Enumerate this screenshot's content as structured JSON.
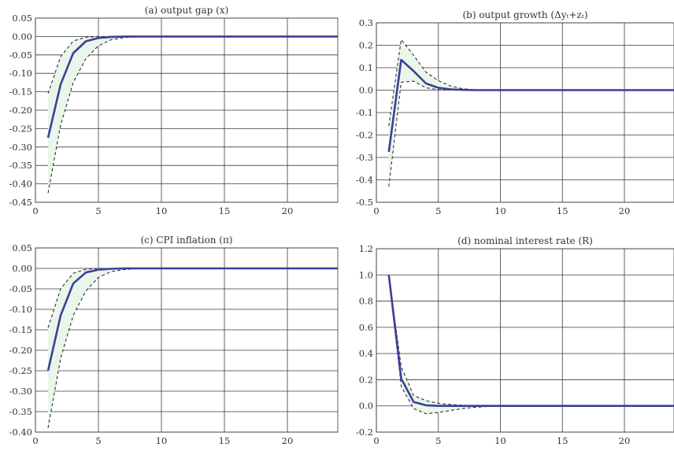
{
  "colors": {
    "median": "#3c3f9a",
    "band": "#e9f6e9",
    "grid": "#3a3a3a"
  },
  "chart_data": [
    {
      "type": "line",
      "title": "(a) output gap (x)",
      "xlim": [
        0,
        24
      ],
      "ylim": [
        -0.45,
        0.05
      ],
      "xticks": [
        0,
        5,
        10,
        15,
        20
      ],
      "yticks": [
        -0.45,
        -0.4,
        -0.35,
        -0.3,
        -0.25,
        -0.2,
        -0.15,
        -0.1,
        -0.05,
        0.0,
        0.05
      ],
      "ytick_decimals": 2,
      "x": [
        1,
        2,
        3,
        4,
        5,
        6,
        7,
        8,
        9,
        10,
        11,
        12,
        13,
        14,
        15,
        16,
        17,
        18,
        19,
        20,
        21,
        22,
        23,
        24
      ],
      "series": [
        {
          "name": "median",
          "style": "solid",
          "values": [
            -0.275,
            -0.13,
            -0.045,
            -0.013,
            -0.004,
            -0.001,
            0,
            0,
            0,
            0,
            0,
            0,
            0,
            0,
            0,
            0,
            0,
            0,
            0,
            0,
            0,
            0,
            0,
            0
          ]
        },
        {
          "name": "upper bound",
          "style": "dashed",
          "values": [
            -0.155,
            -0.055,
            -0.012,
            -0.002,
            0,
            0,
            0,
            0,
            0,
            0,
            0,
            0,
            0,
            0,
            0,
            0,
            0,
            0,
            0,
            0,
            0,
            0,
            0,
            0
          ]
        },
        {
          "name": "lower bound",
          "style": "dashed",
          "values": [
            -0.425,
            -0.24,
            -0.125,
            -0.06,
            -0.025,
            -0.009,
            -0.003,
            -0.001,
            0,
            0,
            0,
            0,
            0,
            0,
            0,
            0,
            0,
            0,
            0,
            0,
            0,
            0,
            0,
            0
          ]
        }
      ]
    },
    {
      "type": "line",
      "title": "(b) output growth (Δyₜ+zₜ)",
      "xlim": [
        0,
        24
      ],
      "ylim": [
        -0.5,
        0.3
      ],
      "xticks": [
        0,
        5,
        10,
        15,
        20
      ],
      "yticks": [
        -0.5,
        -0.4,
        -0.3,
        -0.2,
        -0.1,
        0.0,
        0.1,
        0.2,
        0.3
      ],
      "ytick_decimals": 1,
      "x": [
        1,
        2,
        3,
        4,
        5,
        6,
        7,
        8,
        9,
        10,
        11,
        12,
        13,
        14,
        15,
        16,
        17,
        18,
        19,
        20,
        21,
        22,
        23,
        24
      ],
      "series": [
        {
          "name": "median",
          "style": "solid",
          "values": [
            -0.275,
            0.135,
            0.085,
            0.03,
            0.01,
            0.003,
            0.001,
            0,
            0,
            0,
            0,
            0,
            0,
            0,
            0,
            0,
            0,
            0,
            0,
            0,
            0,
            0,
            0,
            0
          ]
        },
        {
          "name": "upper bound",
          "style": "dashed",
          "values": [
            -0.16,
            0.225,
            0.155,
            0.08,
            0.042,
            0.018,
            0.006,
            0.002,
            0,
            0,
            0,
            0,
            0,
            0,
            0,
            0,
            0,
            0,
            0,
            0,
            0,
            0,
            0,
            0
          ]
        },
        {
          "name": "lower bound",
          "style": "dashed",
          "values": [
            -0.43,
            0.035,
            0.04,
            0.01,
            0.002,
            0,
            0,
            0,
            0,
            0,
            0,
            0,
            0,
            0,
            0,
            0,
            0,
            0,
            0,
            0,
            0,
            0,
            0,
            0
          ]
        }
      ]
    },
    {
      "type": "line",
      "title": "(c) CPI inflation (π)",
      "xlim": [
        0,
        24
      ],
      "ylim": [
        -0.4,
        0.05
      ],
      "xticks": [
        0,
        5,
        10,
        15,
        20
      ],
      "yticks": [
        -0.4,
        -0.35,
        -0.3,
        -0.25,
        -0.2,
        -0.15,
        -0.1,
        -0.05,
        0.0,
        0.05
      ],
      "ytick_decimals": 2,
      "x": [
        1,
        2,
        3,
        4,
        5,
        6,
        7,
        8,
        9,
        10,
        11,
        12,
        13,
        14,
        15,
        16,
        17,
        18,
        19,
        20,
        21,
        22,
        23,
        24
      ],
      "series": [
        {
          "name": "median",
          "style": "solid",
          "values": [
            -0.25,
            -0.115,
            -0.037,
            -0.01,
            -0.003,
            -0.001,
            0,
            0,
            0,
            0,
            0,
            0,
            0,
            0,
            0,
            0,
            0,
            0,
            0,
            0,
            0,
            0,
            0,
            0
          ]
        },
        {
          "name": "upper bound",
          "style": "dashed",
          "values": [
            -0.145,
            -0.05,
            -0.012,
            -0.002,
            0,
            0,
            0,
            0,
            0,
            0,
            0,
            0,
            0,
            0,
            0,
            0,
            0,
            0,
            0,
            0,
            0,
            0,
            0,
            0
          ]
        },
        {
          "name": "lower bound",
          "style": "dashed",
          "values": [
            -0.39,
            -0.22,
            -0.115,
            -0.055,
            -0.022,
            -0.008,
            -0.003,
            -0.001,
            0,
            0,
            0,
            0,
            0,
            0,
            0,
            0,
            0,
            0,
            0,
            0,
            0,
            0,
            0,
            0
          ]
        }
      ]
    },
    {
      "type": "line",
      "title": "(d) nominal interest rate (R)",
      "xlim": [
        0,
        24
      ],
      "ylim": [
        -0.2,
        1.2
      ],
      "xticks": [
        0,
        5,
        10,
        15,
        20
      ],
      "yticks": [
        -0.2,
        0.0,
        0.2,
        0.4,
        0.6,
        0.8,
        1.0,
        1.2
      ],
      "ytick_decimals": 1,
      "x": [
        1,
        2,
        3,
        4,
        5,
        6,
        7,
        8,
        9,
        10,
        11,
        12,
        13,
        14,
        15,
        16,
        17,
        18,
        19,
        20,
        21,
        22,
        23,
        24
      ],
      "series": [
        {
          "name": "median",
          "style": "solid",
          "values": [
            1.0,
            0.21,
            0.03,
            0.005,
            0,
            0,
            0,
            0,
            0,
            0,
            0,
            0,
            0,
            0,
            0,
            0,
            0,
            0,
            0,
            0,
            0,
            0,
            0,
            0
          ]
        },
        {
          "name": "upper bound",
          "style": "dashed",
          "values": [
            1.0,
            0.3,
            0.08,
            0.04,
            0.02,
            0.01,
            0.005,
            0.002,
            0,
            0,
            0,
            0,
            0,
            0,
            0,
            0,
            0,
            0,
            0,
            0,
            0,
            0,
            0,
            0
          ]
        },
        {
          "name": "lower bound",
          "style": "dashed",
          "values": [
            1.0,
            0.15,
            -0.02,
            -0.06,
            -0.05,
            -0.035,
            -0.02,
            -0.01,
            -0.005,
            -0.002,
            0,
            0,
            0,
            0,
            0,
            0,
            0,
            0,
            0,
            0,
            0,
            0,
            0,
            0
          ]
        }
      ]
    }
  ]
}
